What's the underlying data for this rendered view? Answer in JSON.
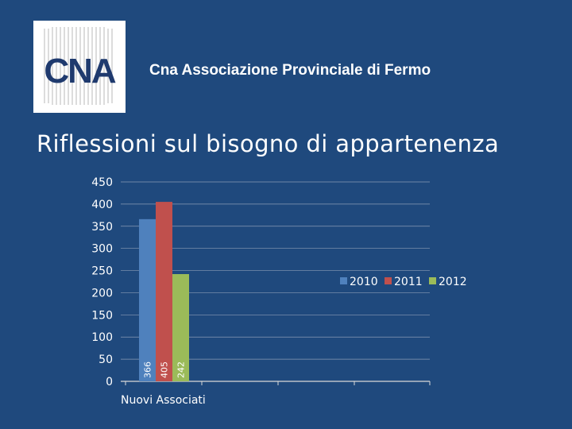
{
  "header": {
    "title": "Cna Associazione Provinciale di Fermo"
  },
  "logo": {
    "text": "CNA"
  },
  "slide": {
    "title": "Riflessioni sul bisogno di appartenenza"
  },
  "colors": {
    "background": "#1f497d",
    "series_2010": "#4f81bd",
    "series_2011": "#c0504d",
    "series_2012": "#9bbb59"
  },
  "chart_data": {
    "type": "bar",
    "categories": [
      "Nuovi Associati"
    ],
    "series": [
      {
        "name": "2010",
        "values": [
          366
        ],
        "color": "#4f81bd"
      },
      {
        "name": "2011",
        "values": [
          405
        ],
        "color": "#c0504d"
      },
      {
        "name": "2012",
        "values": [
          242
        ],
        "color": "#9bbb59"
      }
    ],
    "ylim": [
      0,
      450
    ],
    "yticks": [
      0,
      50,
      100,
      150,
      200,
      250,
      300,
      350,
      400,
      450
    ],
    "grid": true,
    "legend": "right",
    "data_labels": true,
    "data_label_orientation": "vertical"
  }
}
